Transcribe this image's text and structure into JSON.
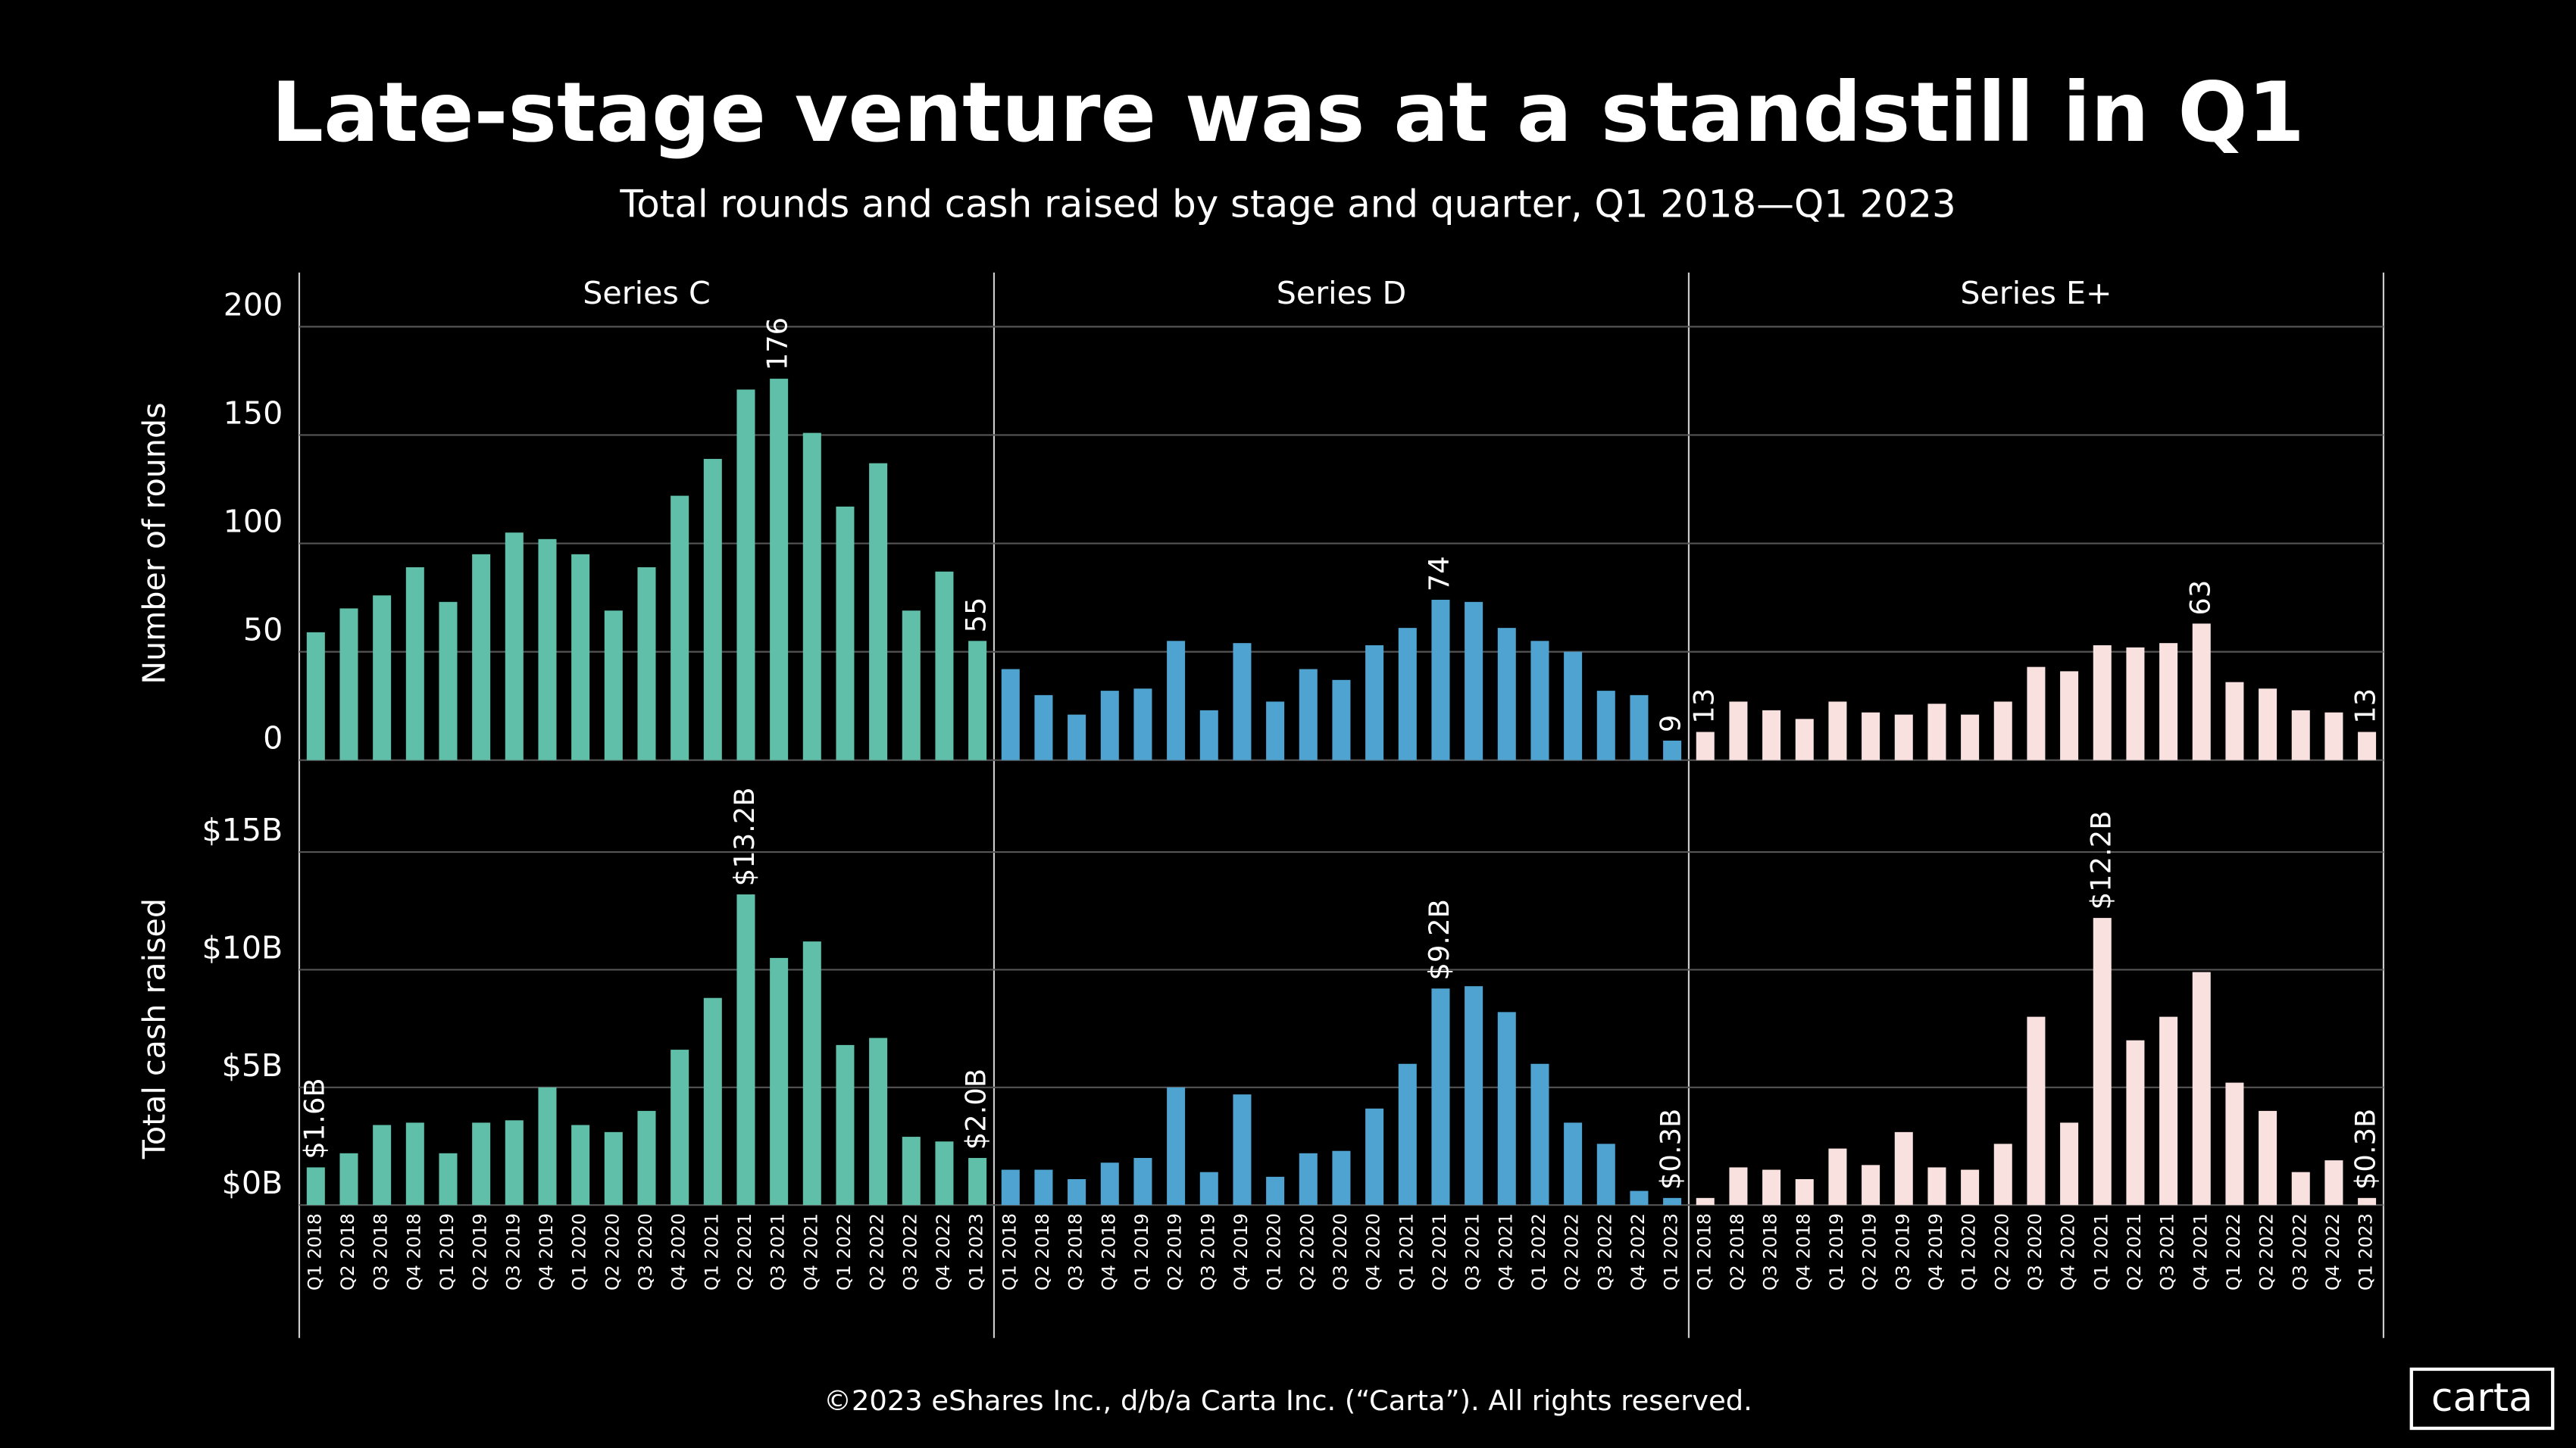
{
  "chart_data": {
    "type": "bar",
    "title": "Late-stage venture was at a standstill in Q1",
    "subtitle": "Total rounds and cash raised by stage and quarter, Q1 2018—Q1 2023",
    "footer": "©2023 eShares Inc., d/b/a Carta Inc. (“Carta”). All rights reserved.",
    "logo": "carta",
    "categories": [
      "Q1 2018",
      "Q2 2018",
      "Q3 2018",
      "Q4 2018",
      "Q1 2019",
      "Q2 2019",
      "Q3 2019",
      "Q4 2019",
      "Q1 2020",
      "Q2 2020",
      "Q3 2020",
      "Q4 2020",
      "Q1 2021",
      "Q2 2021",
      "Q3 2021",
      "Q4 2021",
      "Q1 2022",
      "Q2 2022",
      "Q3 2022",
      "Q4 2022",
      "Q1 2023"
    ],
    "facets": [
      {
        "name": "Series C",
        "color": "#5fbfa9"
      },
      {
        "name": "Series D",
        "color": "#4fa3d1"
      },
      {
        "name": "Series E+",
        "color": "#f8e1df"
      }
    ],
    "rows": [
      {
        "ylabel": "Number of rounds",
        "ylim": [
          0,
          200
        ],
        "yticks": [
          0,
          50,
          100,
          150,
          200
        ],
        "values": [
          [
            59,
            70,
            76,
            89,
            73,
            95,
            105,
            102,
            95,
            69,
            89,
            122,
            139,
            171,
            176,
            151,
            117,
            137,
            69,
            87,
            55
          ],
          [
            42,
            30,
            21,
            32,
            33,
            55,
            23,
            54,
            27,
            42,
            37,
            53,
            61,
            74,
            73,
            61,
            55,
            50,
            32,
            30,
            9
          ],
          [
            13,
            27,
            23,
            19,
            27,
            22,
            21,
            26,
            21,
            27,
            43,
            41,
            53,
            52,
            54,
            63,
            36,
            33,
            23,
            22,
            13
          ]
        ],
        "value_labels": [
          [
            null,
            null,
            null,
            null,
            null,
            null,
            null,
            null,
            null,
            null,
            null,
            null,
            null,
            null,
            "176",
            null,
            null,
            null,
            null,
            null,
            "55"
          ],
          [
            null,
            null,
            null,
            null,
            null,
            null,
            null,
            null,
            null,
            null,
            null,
            null,
            null,
            "74",
            null,
            null,
            null,
            null,
            null,
            null,
            "9"
          ],
          [
            "13",
            null,
            null,
            null,
            null,
            null,
            null,
            null,
            null,
            null,
            null,
            null,
            null,
            null,
            null,
            "63",
            null,
            null,
            null,
            null,
            "13"
          ]
        ]
      },
      {
        "ylabel": "Total cash raised",
        "ylim": [
          0,
          15
        ],
        "yticks": [
          {
            "value": 0,
            "label": "$0B"
          },
          {
            "value": 5,
            "label": "$5B"
          },
          {
            "value": 10,
            "label": "$10B"
          },
          {
            "value": 15,
            "label": "$15B"
          }
        ],
        "values": [
          [
            1.6,
            2.2,
            3.4,
            3.5,
            2.2,
            3.5,
            3.6,
            5.0,
            3.4,
            3.1,
            4.0,
            6.6,
            8.8,
            13.2,
            10.5,
            11.2,
            6.8,
            7.1,
            2.9,
            2.7,
            2.0
          ],
          [
            1.5,
            1.5,
            1.1,
            1.8,
            2.0,
            5.0,
            1.4,
            4.7,
            1.2,
            2.2,
            2.3,
            4.1,
            6.0,
            9.2,
            9.3,
            8.2,
            6.0,
            3.5,
            2.6,
            0.6,
            0.3
          ],
          [
            0.3,
            1.6,
            1.5,
            1.1,
            2.4,
            1.7,
            3.1,
            1.6,
            1.5,
            2.6,
            8.0,
            3.5,
            12.2,
            7.0,
            8.0,
            9.9,
            5.2,
            4.0,
            1.4,
            1.9,
            0.3
          ]
        ],
        "value_labels": [
          [
            "$1.6B",
            null,
            null,
            null,
            null,
            null,
            null,
            null,
            null,
            null,
            null,
            null,
            null,
            "$13.2B",
            null,
            null,
            null,
            null,
            null,
            null,
            "$2.0B"
          ],
          [
            null,
            null,
            null,
            null,
            null,
            null,
            null,
            null,
            null,
            null,
            null,
            null,
            null,
            "$9.2B",
            null,
            null,
            null,
            null,
            null,
            null,
            "$0.3B"
          ],
          [
            null,
            null,
            null,
            null,
            null,
            null,
            null,
            null,
            null,
            null,
            null,
            null,
            "$12.2B",
            null,
            null,
            null,
            null,
            null,
            null,
            null,
            "$0.3B"
          ]
        ]
      }
    ]
  }
}
